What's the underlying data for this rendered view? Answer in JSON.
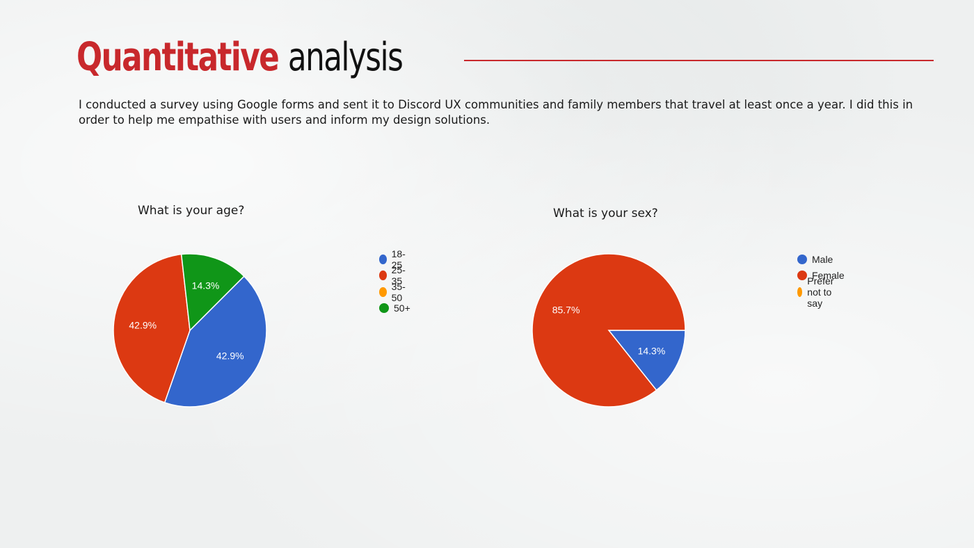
{
  "slide": {
    "title_accent": "Quantitative",
    "title_rest": "analysis",
    "intro": "I conducted a survey using Google forms and sent it to Discord UX communities and family members that travel at least once a year. I did this in order to help me empathise with users and inform my design solutions."
  },
  "colors": {
    "accent": "#c8282c"
  },
  "chart_data": [
    {
      "type": "pie",
      "title": "What is your age?",
      "slices": [
        {
          "label": "18-25",
          "value": 42.9,
          "color": "#3366cc"
        },
        {
          "label": "25-35",
          "value": 42.9,
          "color": "#dc3912"
        },
        {
          "label": "35-50",
          "value": 0,
          "color": "#ff9900"
        },
        {
          "label": "50+",
          "value": 14.3,
          "color": "#109618"
        }
      ],
      "data_labels": [
        "42.9%",
        "42.9%",
        "",
        "14.3%"
      ],
      "legend": "right"
    },
    {
      "type": "pie",
      "title": "What is your sex?",
      "slices": [
        {
          "label": "Male",
          "value": 14.3,
          "color": "#3366cc"
        },
        {
          "label": "Female",
          "value": 85.7,
          "color": "#dc3912"
        },
        {
          "label": "Prefer not to say",
          "value": 0,
          "color": "#ff9900"
        }
      ],
      "data_labels": [
        "14.3%",
        "85.7%",
        ""
      ],
      "legend": "right"
    }
  ]
}
